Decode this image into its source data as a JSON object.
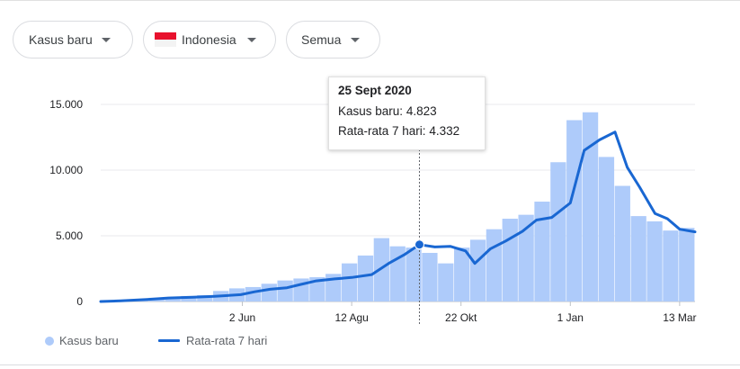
{
  "filters": {
    "type_label": "Kasus baru",
    "country_label": "Indonesia",
    "range_label": "Semua"
  },
  "tooltip": {
    "date": "25 Sept 2020",
    "cases_label": "Kasus baru",
    "cases_value": "4.823",
    "avg_label": "Rata-rata 7 hari",
    "avg_value": "4.332"
  },
  "legend": {
    "bars": "Kasus baru",
    "line": "Rata-rata 7 hari"
  },
  "colors": {
    "bars": "#aecbfa",
    "line": "#1967d2",
    "grid": "#e8eaed",
    "tick_text": "#202124",
    "flag_red": "#e8112d"
  },
  "chart_data": {
    "type": "bar",
    "title": "",
    "xlabel": "",
    "ylabel": "",
    "ylim": [
      0,
      16000
    ],
    "yticks": [
      {
        "value": 0,
        "label": "0"
      },
      {
        "value": 5000,
        "label": "5.000"
      },
      {
        "value": 10000,
        "label": "10.000"
      },
      {
        "value": 15000,
        "label": "15.000"
      }
    ],
    "xlim": [
      "2020-03-02",
      "2021-03-23"
    ],
    "xticks": [
      {
        "date": "2020-06-02",
        "label": "2 Jun"
      },
      {
        "date": "2020-08-12",
        "label": "12 Agu"
      },
      {
        "date": "2020-10-22",
        "label": "22 Okt"
      },
      {
        "date": "2021-01-01",
        "label": "1 Jan"
      },
      {
        "date": "2021-03-13",
        "label": "13 Mar"
      }
    ],
    "grid": true,
    "legend_position": "bottom-left",
    "highlight": {
      "date": "2020-09-25",
      "cases": 4823,
      "avg": 4332
    },
    "series": [
      {
        "name": "Kasus baru",
        "type": "bar",
        "points": [
          [
            "2020-03-02",
            2
          ],
          [
            "2020-03-15",
            40
          ],
          [
            "2020-04-01",
            120
          ],
          [
            "2020-04-15",
            280
          ],
          [
            "2020-05-01",
            330
          ],
          [
            "2020-05-15",
            420
          ],
          [
            "2020-06-01",
            480
          ],
          [
            "2020-06-10",
            800
          ],
          [
            "2020-06-20",
            1000
          ],
          [
            "2020-07-01",
            1100
          ],
          [
            "2020-07-10",
            1350
          ],
          [
            "2020-07-20",
            1600
          ],
          [
            "2020-08-01",
            1750
          ],
          [
            "2020-08-12",
            1850
          ],
          [
            "2020-08-25",
            2100
          ],
          [
            "2020-09-05",
            2900
          ],
          [
            "2020-09-15",
            3500
          ],
          [
            "2020-09-25",
            4823
          ],
          [
            "2020-10-05",
            4200
          ],
          [
            "2020-10-15",
            4100
          ],
          [
            "2020-10-25",
            3700
          ],
          [
            "2020-10-31",
            2900
          ],
          [
            "2020-11-10",
            4100
          ],
          [
            "2020-11-20",
            4700
          ],
          [
            "2020-12-01",
            5500
          ],
          [
            "2020-12-10",
            6300
          ],
          [
            "2020-12-20",
            6600
          ],
          [
            "2021-01-01",
            7600
          ],
          [
            "2021-01-10",
            10600
          ],
          [
            "2021-01-20",
            13800
          ],
          [
            "2021-01-30",
            14400
          ],
          [
            "2021-02-07",
            11000
          ],
          [
            "2021-02-15",
            8800
          ],
          [
            "2021-02-25",
            6500
          ],
          [
            "2021-03-05",
            6100
          ],
          [
            "2021-03-13",
            5400
          ],
          [
            "2021-03-23",
            5600
          ]
        ]
      },
      {
        "name": "Rata-rata 7 hari",
        "type": "line",
        "points": [
          [
            "2020-03-02",
            0
          ],
          [
            "2020-03-15",
            50
          ],
          [
            "2020-04-01",
            150
          ],
          [
            "2020-04-15",
            270
          ],
          [
            "2020-05-01",
            320
          ],
          [
            "2020-05-15",
            400
          ],
          [
            "2020-06-01",
            520
          ],
          [
            "2020-06-10",
            740
          ],
          [
            "2020-06-20",
            930
          ],
          [
            "2020-07-01",
            1050
          ],
          [
            "2020-07-10",
            1300
          ],
          [
            "2020-07-20",
            1570
          ],
          [
            "2020-08-01",
            1720
          ],
          [
            "2020-08-12",
            1830
          ],
          [
            "2020-08-25",
            2050
          ],
          [
            "2020-09-05",
            2900
          ],
          [
            "2020-09-15",
            3550
          ],
          [
            "2020-09-25",
            4332
          ],
          [
            "2020-10-05",
            4150
          ],
          [
            "2020-10-15",
            4200
          ],
          [
            "2020-10-25",
            3850
          ],
          [
            "2020-10-31",
            2900
          ],
          [
            "2020-11-10",
            4000
          ],
          [
            "2020-11-20",
            4600
          ],
          [
            "2020-12-01",
            5350
          ],
          [
            "2020-12-10",
            6200
          ],
          [
            "2020-12-20",
            6400
          ],
          [
            "2021-01-01",
            7500
          ],
          [
            "2021-01-10",
            11500
          ],
          [
            "2021-01-20",
            12300
          ],
          [
            "2021-01-30",
            12900
          ],
          [
            "2021-02-07",
            10200
          ],
          [
            "2021-02-15",
            8700
          ],
          [
            "2021-02-25",
            6700
          ],
          [
            "2021-03-05",
            6300
          ],
          [
            "2021-03-13",
            5500
          ],
          [
            "2021-03-23",
            5300
          ]
        ]
      }
    ]
  }
}
